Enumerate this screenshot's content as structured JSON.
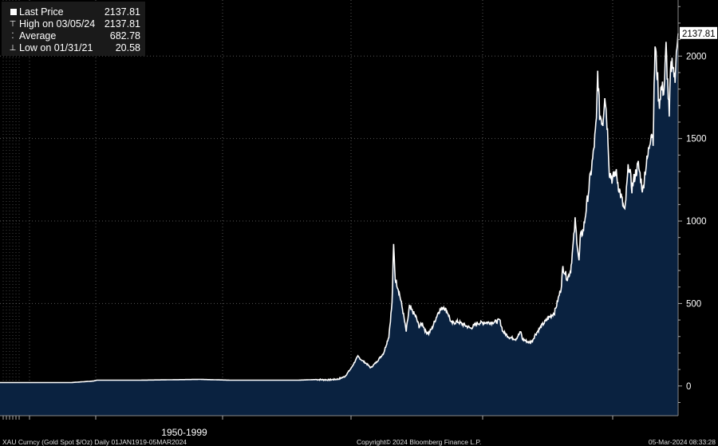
{
  "legend": {
    "last_price_label": "Last Price",
    "last_price_value": "2137.81",
    "high_label": "High on 03/05/24",
    "high_value": "2137.81",
    "average_label": "Average",
    "average_value": "682.78",
    "low_label": "Low on 01/31/21",
    "low_value": "20.58"
  },
  "footer": {
    "left": "XAU Curncy (Gold Spot  $/Oz)  Daily 01JAN1919-05MAR2024",
    "center": "Copyright© 2024 Bloomberg Finance L.P.",
    "right": "05-Mar-2024 08:33:28"
  },
  "colors": {
    "background": "#000000",
    "area_fill": "#0a2240",
    "line": "#ffffff",
    "last_price_box": "#ffffff"
  },
  "chart_data": {
    "type": "area",
    "title": "",
    "xlabel": "",
    "ylabel": "",
    "x_tick_labels": [
      "1950-1999"
    ],
    "y_ticks": [
      0,
      500,
      1000,
      1500,
      2000
    ],
    "ylim": [
      -180,
      2340
    ],
    "xlim": [
      1919.0,
      2024.17
    ],
    "grid": true,
    "last_price_label": "2137.81",
    "series": [
      {
        "values_x": [
          1919.0,
          1930.0,
          1933.5,
          1934.0,
          1940.0,
          1946.0,
          1950.0,
          1955.0,
          1960.0,
          1965.0,
          1968.0,
          1970.0,
          1971.5,
          1972.5,
          1973.5,
          1974.5,
          1975.0,
          1976.0,
          1976.5,
          1977.5,
          1978.5,
          1979.3,
          1979.8,
          1980.05,
          1980.3,
          1980.7,
          1981.0,
          1981.5,
          1982.0,
          1982.5,
          1983.0,
          1983.5,
          1984.0,
          1984.5,
          1985.0,
          1985.5,
          1986.0,
          1987.0,
          1987.8,
          1988.5,
          1989.0,
          1990.0,
          1991.0,
          1992.0,
          1993.0,
          1994.0,
          1995.0,
          1996.0,
          1996.5,
          1997.0,
          1998.0,
          1999.0,
          1999.8,
          2000.0,
          2001.0,
          2001.5,
          2002.0,
          2003.0,
          2004.0,
          2005.0,
          2006.0,
          2006.3,
          2007.0,
          2007.5,
          2008.0,
          2008.2,
          2008.8,
          2009.0,
          2009.5,
          2010.0,
          2010.5,
          2011.0,
          2011.5,
          2011.7,
          2012.0,
          2012.5,
          2012.8,
          2013.0,
          2013.3,
          2013.5,
          2014.0,
          2014.5,
          2015.0,
          2015.5,
          2015.9,
          2016.5,
          2017.0,
          2017.5,
          2018.0,
          2018.7,
          2019.0,
          2019.5,
          2020.0,
          2020.3,
          2020.6,
          2021.0,
          2021.2,
          2021.5,
          2022.0,
          2022.3,
          2022.8,
          2023.0,
          2023.3,
          2023.7,
          2023.9,
          2024.17
        ],
        "values_y": [
          20.58,
          20.67,
          30,
          35,
          35,
          38,
          40,
          35,
          35,
          35,
          39,
          37,
          42,
          58,
          110,
          180,
          160,
          130,
          110,
          150,
          200,
          300,
          500,
          850,
          650,
          600,
          550,
          450,
          330,
          480,
          450,
          420,
          360,
          380,
          330,
          320,
          350,
          450,
          480,
          440,
          380,
          390,
          370,
          350,
          380,
          385,
          385,
          390,
          400,
          330,
          295,
          285,
          330,
          285,
          265,
          270,
          310,
          365,
          410,
          445,
          590,
          720,
          650,
          700,
          900,
          1000,
          750,
          900,
          950,
          1100,
          1250,
          1400,
          1600,
          1900,
          1650,
          1600,
          1780,
          1680,
          1500,
          1300,
          1250,
          1300,
          1200,
          1120,
          1050,
          1350,
          1200,
          1280,
          1340,
          1180,
          1290,
          1400,
          1550,
          1500,
          2070,
          1850,
          1700,
          1800,
          1800,
          2050,
          1620,
          1900,
          1980,
          1830,
          2070,
          2137.81
        ]
      }
    ]
  }
}
